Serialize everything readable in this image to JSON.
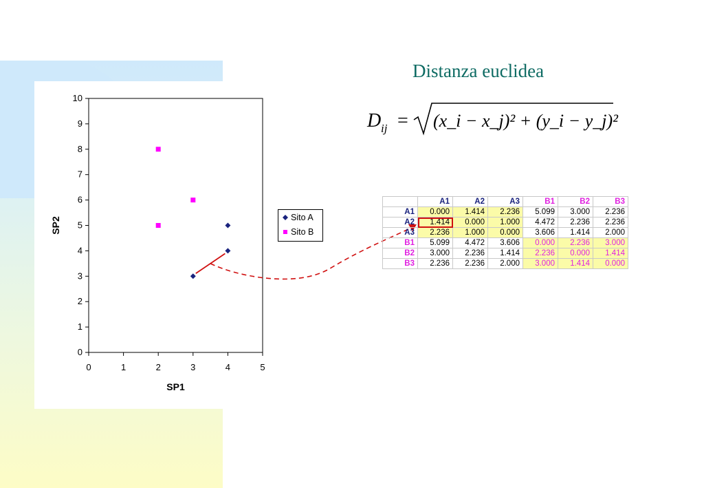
{
  "slide": {
    "title": "Distanza euclidea"
  },
  "formula": {
    "lhs": "D",
    "lhs_sub": "ij",
    "equals": "=",
    "body": "(x_i − x_j)² + (y_i − y_j)²"
  },
  "chart_data": {
    "type": "scatter",
    "xlabel": "SP1",
    "ylabel": "SP2",
    "xlim": [
      0,
      5
    ],
    "ylim": [
      0,
      10
    ],
    "xticks": [
      0,
      1,
      2,
      3,
      4,
      5
    ],
    "yticks": [
      0,
      1,
      2,
      3,
      4,
      5,
      6,
      7,
      8,
      9,
      10
    ],
    "grid": false,
    "legend_position": "right",
    "series": [
      {
        "name": "Sito A",
        "marker": "diamond",
        "color": "#1a237e",
        "points": [
          [
            3,
            3
          ],
          [
            4,
            4
          ],
          [
            4,
            5
          ]
        ]
      },
      {
        "name": "Sito B",
        "marker": "square",
        "color": "#ff00ff",
        "points": [
          [
            2,
            8
          ],
          [
            3,
            6
          ],
          [
            2,
            5
          ]
        ]
      }
    ],
    "highlight_segment": {
      "from": [
        3,
        3
      ],
      "to": [
        4,
        4
      ],
      "color": "#d01010"
    }
  },
  "matrix": {
    "headers": [
      "A1",
      "A2",
      "A3",
      "B1",
      "B2",
      "B3"
    ],
    "rows": [
      {
        "label": "A1",
        "values": [
          "0.000",
          "1.414",
          "2.236",
          "5.099",
          "3.000",
          "2.236"
        ]
      },
      {
        "label": "A2",
        "values": [
          "1.414",
          "0.000",
          "1.000",
          "4.472",
          "2.236",
          "2.236"
        ]
      },
      {
        "label": "A3",
        "values": [
          "2.236",
          "1.000",
          "0.000",
          "3.606",
          "1.414",
          "2.000"
        ]
      },
      {
        "label": "B1",
        "values": [
          "5.099",
          "4.472",
          "3.606",
          "0.000",
          "2.236",
          "3.000"
        ]
      },
      {
        "label": "B2",
        "values": [
          "3.000",
          "2.236",
          "1.414",
          "2.236",
          "0.000",
          "1.414"
        ]
      },
      {
        "label": "B3",
        "values": [
          "2.236",
          "2.236",
          "2.000",
          "3.000",
          "1.414",
          "0.000"
        ]
      }
    ],
    "highlighted_cell": {
      "row": 1,
      "col": 0
    }
  },
  "colors": {
    "title": "#0e6b63",
    "site_a": "#1a237e",
    "site_b": "#ff00ff",
    "highlight": "#fbfba8",
    "arrow": "#d01010"
  }
}
